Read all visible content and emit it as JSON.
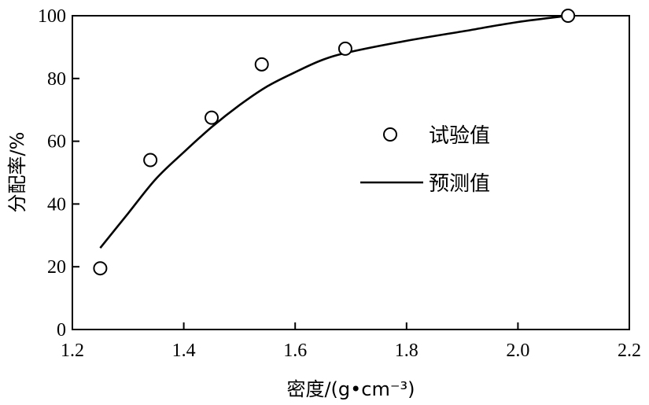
{
  "chart_data": {
    "type": "scatter",
    "xlabel": "密度/(g•cm⁻³)",
    "ylabel": "分配率/%",
    "xlim": [
      1.2,
      2.2
    ],
    "ylim": [
      0,
      100
    ],
    "x_ticks": [
      "1.2",
      "1.4",
      "1.6",
      "1.8",
      "2.0",
      "2.2"
    ],
    "y_ticks": [
      "0",
      "20",
      "40",
      "60",
      "80",
      "100"
    ],
    "grid": false,
    "legend_position": "right-center",
    "series": [
      {
        "name": "试验值",
        "type": "scatter",
        "marker": "open-circle",
        "x": [
          1.25,
          1.34,
          1.45,
          1.54,
          1.69,
          2.09
        ],
        "y": [
          19.5,
          54.0,
          67.5,
          84.5,
          89.5,
          100.0
        ]
      },
      {
        "name": "预测值",
        "type": "line",
        "x": [
          1.25,
          1.3,
          1.35,
          1.4,
          1.45,
          1.5,
          1.55,
          1.6,
          1.65,
          1.7,
          1.8,
          1.9,
          2.0,
          2.09
        ],
        "y": [
          26.0,
          37.0,
          48.0,
          56.5,
          64.5,
          71.5,
          77.5,
          82.0,
          86.0,
          88.5,
          92.0,
          95.0,
          98.0,
          100.0
        ]
      }
    ],
    "colors": {
      "axis": "#000000",
      "line": "#000000",
      "marker": "#000000"
    }
  }
}
